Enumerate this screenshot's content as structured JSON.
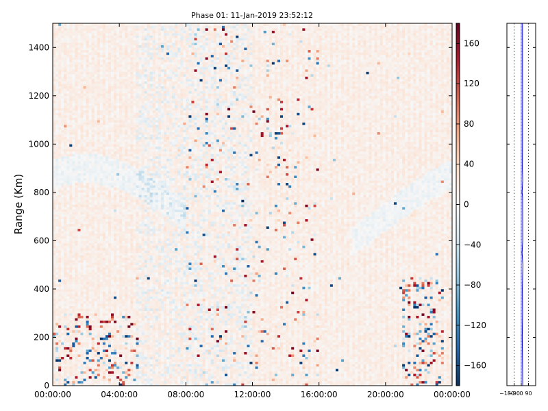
{
  "chart_data": [
    {
      "type": "heatmap",
      "title": "Phase 01: 11-Jan-2019 23:52:12",
      "xlabel": "",
      "ylabel": "Range (Km)",
      "x_ticks": [
        "00:00:00",
        "04:00:00",
        "08:00:00",
        "12:00:00",
        "16:00:00",
        "20:00:00",
        "00:00:00"
      ],
      "x_range_hours": [
        0,
        24
      ],
      "y_ticks": [
        0,
        200,
        400,
        600,
        800,
        1000,
        1200,
        1400
      ],
      "ylim": [
        0,
        1500
      ],
      "colorbar": {
        "range": [
          -180,
          180
        ],
        "ticks": [
          -160,
          -120,
          -80,
          -40,
          0,
          40,
          80,
          120,
          160
        ],
        "colormap": "RdBu_r"
      },
      "description_values": {
        "background_phase_deg": 15,
        "noisy_time_window_hours": [
          8,
          16
        ],
        "noisy_low_range_windows": [
          [
            0,
            5.2,
            0,
            300
          ],
          [
            21,
            23.5,
            0,
            450
          ]
        ]
      }
    },
    {
      "type": "line",
      "x_ticks": [
        -180,
        -90,
        0,
        90
      ],
      "xlim": [
        -180,
        180
      ],
      "ylim": [
        0,
        1500
      ],
      "series": [
        {
          "color": "#0000cc",
          "range_km": [
            0,
            100,
            200,
            300,
            400,
            500,
            550,
            600,
            700,
            780,
            800,
            850,
            900,
            1000,
            1100,
            1200,
            1300,
            1400,
            1500
          ],
          "phase_deg": [
            18,
            15,
            12,
            16,
            14,
            20,
            10,
            18,
            17,
            16,
            10,
            18,
            14,
            15,
            15,
            16,
            15,
            15,
            15
          ]
        }
      ],
      "reference_lines_deg": [
        -90,
        0,
        90
      ]
    }
  ],
  "colors": {
    "axes": "#000000",
    "background": "#ffffff",
    "line": "#0000cc"
  }
}
